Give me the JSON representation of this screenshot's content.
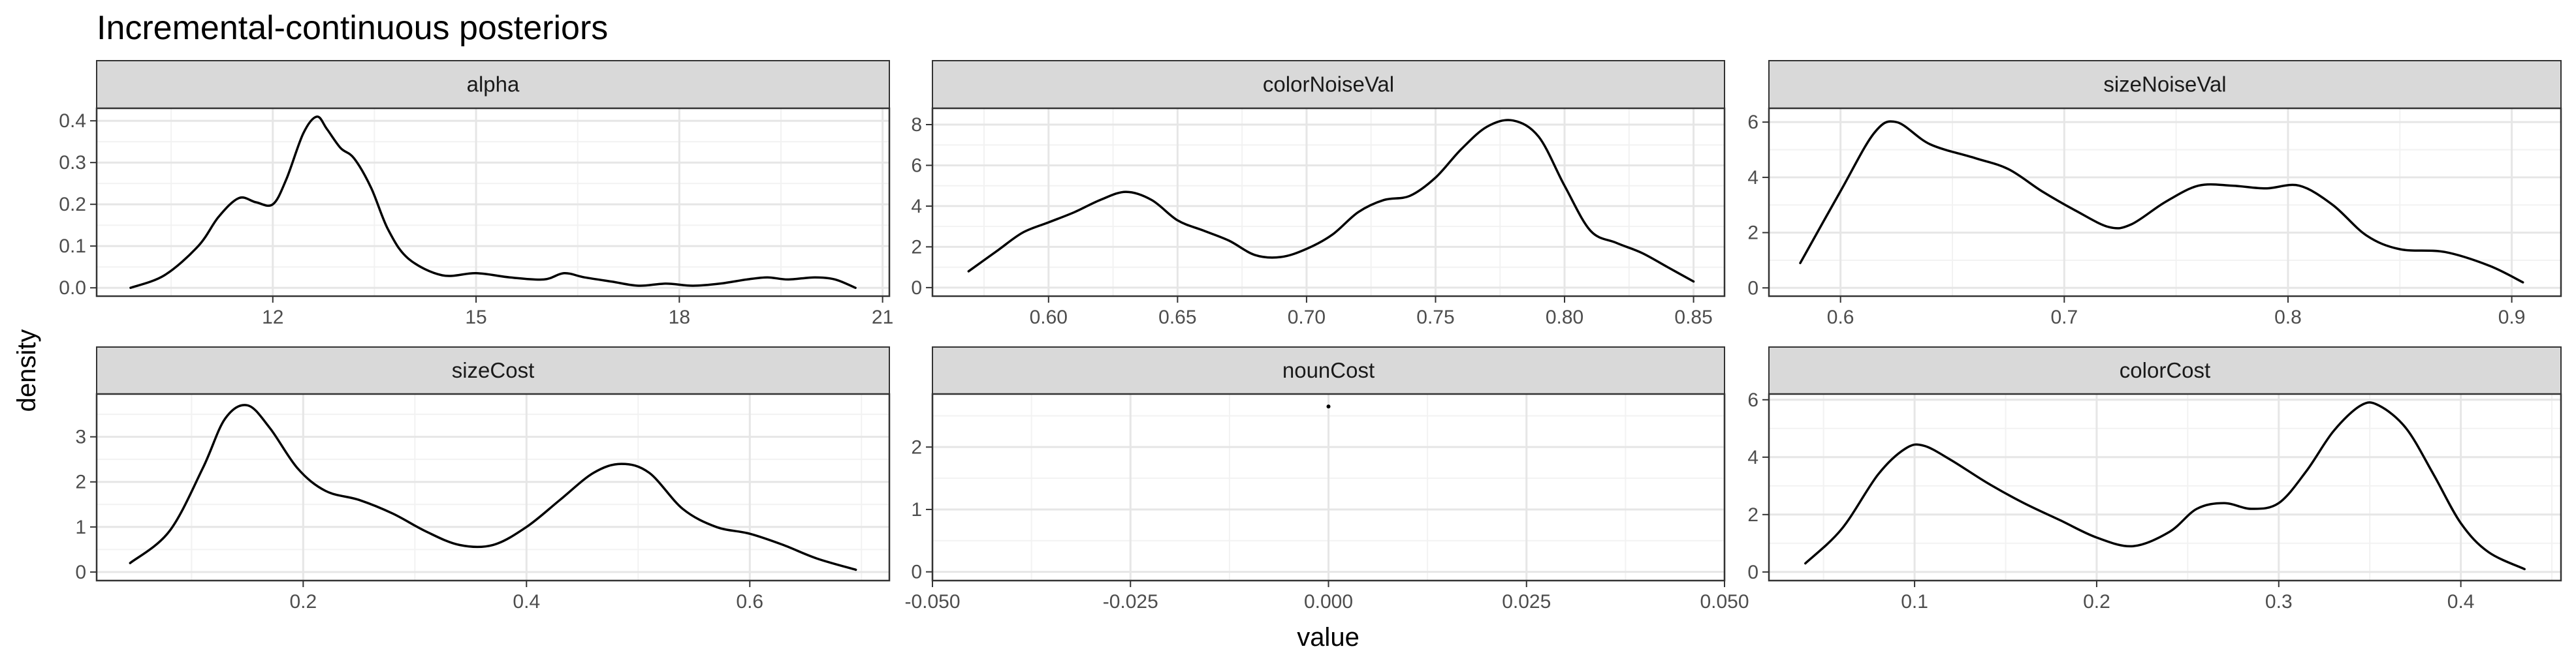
{
  "chart_data": {
    "type": "line",
    "title": "Incremental-continuous posteriors",
    "xlabel": "value",
    "ylabel": "density",
    "grid": true,
    "legend": "none",
    "line_color": "#000000",
    "strip_color": "#d9d9d9",
    "panels": [
      {
        "name": "alpha",
        "xlim": [
          9.4,
          21.1
        ],
        "ylim": [
          -0.02,
          0.43
        ],
        "x_ticks": [
          12,
          15,
          18,
          21
        ],
        "x_tick_labels": [
          "12",
          "15",
          "18",
          "21"
        ],
        "y_ticks": [
          0.0,
          0.1,
          0.2,
          0.3,
          0.4
        ],
        "y_tick_labels": [
          "0.0",
          "0.1",
          "0.2",
          "0.3",
          "0.4"
        ],
        "x": [
          9.9,
          10.4,
          10.9,
          11.2,
          11.5,
          11.75,
          12.0,
          12.2,
          12.45,
          12.65,
          12.8,
          13.0,
          13.2,
          13.45,
          13.7,
          14.0,
          14.5,
          15.0,
          15.5,
          16.0,
          16.3,
          16.6,
          17.0,
          17.4,
          17.8,
          18.2,
          18.6,
          19.0,
          19.3,
          19.6,
          20.0,
          20.3,
          20.6
        ],
        "y": [
          0.0,
          0.03,
          0.1,
          0.17,
          0.215,
          0.205,
          0.2,
          0.26,
          0.37,
          0.41,
          0.38,
          0.335,
          0.31,
          0.24,
          0.14,
          0.07,
          0.03,
          0.035,
          0.025,
          0.02,
          0.035,
          0.025,
          0.015,
          0.005,
          0.01,
          0.005,
          0.01,
          0.02,
          0.025,
          0.02,
          0.025,
          0.02,
          0.0
        ]
      },
      {
        "name": "colorNoiseVal",
        "xlim": [
          0.555,
          0.862
        ],
        "ylim": [
          -0.42,
          8.8
        ],
        "x_ticks": [
          0.6,
          0.65,
          0.7,
          0.75,
          0.8,
          0.85
        ],
        "x_tick_labels": [
          "0.60",
          "0.65",
          "0.70",
          "0.75",
          "0.80",
          "0.85"
        ],
        "y_ticks": [
          0,
          2,
          4,
          6,
          8
        ],
        "y_tick_labels": [
          "0",
          "2",
          "4",
          "6",
          "8"
        ],
        "x": [
          0.569,
          0.58,
          0.59,
          0.6,
          0.61,
          0.62,
          0.63,
          0.64,
          0.65,
          0.66,
          0.67,
          0.68,
          0.69,
          0.7,
          0.71,
          0.72,
          0.73,
          0.74,
          0.75,
          0.76,
          0.77,
          0.78,
          0.79,
          0.8,
          0.81,
          0.82,
          0.83,
          0.84,
          0.85
        ],
        "y": [
          0.8,
          1.8,
          2.7,
          3.2,
          3.7,
          4.3,
          4.7,
          4.3,
          3.3,
          2.8,
          2.3,
          1.6,
          1.5,
          1.9,
          2.6,
          3.7,
          4.3,
          4.5,
          5.4,
          6.8,
          7.9,
          8.2,
          7.4,
          5.0,
          2.8,
          2.2,
          1.7,
          1.0,
          0.3
        ]
      },
      {
        "name": "sizeNoiseVal",
        "xlim": [
          0.568,
          0.922
        ],
        "ylim": [
          -0.3,
          6.5
        ],
        "x_ticks": [
          0.6,
          0.7,
          0.8,
          0.9
        ],
        "x_tick_labels": [
          "0.6",
          "0.7",
          "0.8",
          "0.9"
        ],
        "y_ticks": [
          0,
          2,
          4,
          6
        ],
        "y_tick_labels": [
          "0",
          "2",
          "4",
          "6"
        ],
        "x": [
          0.582,
          0.6,
          0.615,
          0.625,
          0.64,
          0.66,
          0.675,
          0.69,
          0.705,
          0.72,
          0.73,
          0.745,
          0.76,
          0.775,
          0.79,
          0.805,
          0.82,
          0.835,
          0.85,
          0.87,
          0.89,
          0.905
        ],
        "y": [
          0.9,
          3.5,
          5.6,
          6.0,
          5.2,
          4.7,
          4.3,
          3.5,
          2.8,
          2.2,
          2.3,
          3.1,
          3.7,
          3.7,
          3.6,
          3.7,
          3.0,
          1.9,
          1.4,
          1.3,
          0.8,
          0.2
        ]
      },
      {
        "name": "sizeCost",
        "xlim": [
          0.015,
          0.725
        ],
        "ylim": [
          -0.19,
          3.95
        ],
        "x_ticks": [
          0.2,
          0.4,
          0.6
        ],
        "x_tick_labels": [
          "0.2",
          "0.4",
          "0.6"
        ],
        "y_ticks": [
          0,
          1,
          2,
          3
        ],
        "y_tick_labels": [
          "0",
          "1",
          "2",
          "3"
        ],
        "x": [
          0.045,
          0.08,
          0.11,
          0.13,
          0.15,
          0.17,
          0.195,
          0.22,
          0.25,
          0.28,
          0.31,
          0.34,
          0.37,
          0.4,
          0.43,
          0.46,
          0.485,
          0.51,
          0.54,
          0.57,
          0.6,
          0.63,
          0.66,
          0.695
        ],
        "y": [
          0.2,
          0.9,
          2.3,
          3.4,
          3.7,
          3.2,
          2.3,
          1.8,
          1.6,
          1.3,
          0.9,
          0.6,
          0.6,
          1.0,
          1.6,
          2.2,
          2.4,
          2.2,
          1.4,
          1.0,
          0.85,
          0.6,
          0.3,
          0.05
        ]
      },
      {
        "name": "nounCost",
        "xlim": [
          -0.05,
          0.05
        ],
        "ylim": [
          -0.14,
          2.85
        ],
        "x_ticks": [
          -0.05,
          -0.025,
          0.0,
          0.025,
          0.05
        ],
        "x_tick_labels": [
          "-0.050",
          "-0.025",
          "0.000",
          "0.025",
          "0.050"
        ],
        "y_ticks": [
          0,
          1,
          2
        ],
        "y_tick_labels": [
          "0",
          "1",
          "2"
        ],
        "x": [
          0.0
        ],
        "y": [
          2.65
        ]
      },
      {
        "name": "colorCost",
        "xlim": [
          0.02,
          0.455
        ],
        "ylim": [
          -0.3,
          6.2
        ],
        "x_ticks": [
          0.1,
          0.2,
          0.3,
          0.4
        ],
        "x_tick_labels": [
          "0.1",
          "0.2",
          "0.3",
          "0.4"
        ],
        "y_ticks": [
          0,
          2,
          4,
          6
        ],
        "y_tick_labels": [
          "0",
          "2",
          "4",
          "6"
        ],
        "x": [
          0.04,
          0.06,
          0.08,
          0.095,
          0.105,
          0.12,
          0.14,
          0.16,
          0.18,
          0.2,
          0.22,
          0.24,
          0.255,
          0.27,
          0.285,
          0.3,
          0.315,
          0.33,
          0.345,
          0.355,
          0.37,
          0.385,
          0.4,
          0.415,
          0.435
        ],
        "y": [
          0.3,
          1.5,
          3.4,
          4.3,
          4.4,
          3.9,
          3.1,
          2.4,
          1.8,
          1.2,
          0.9,
          1.4,
          2.2,
          2.4,
          2.2,
          2.4,
          3.5,
          4.9,
          5.8,
          5.8,
          5.0,
          3.4,
          1.7,
          0.7,
          0.1
        ]
      }
    ]
  }
}
